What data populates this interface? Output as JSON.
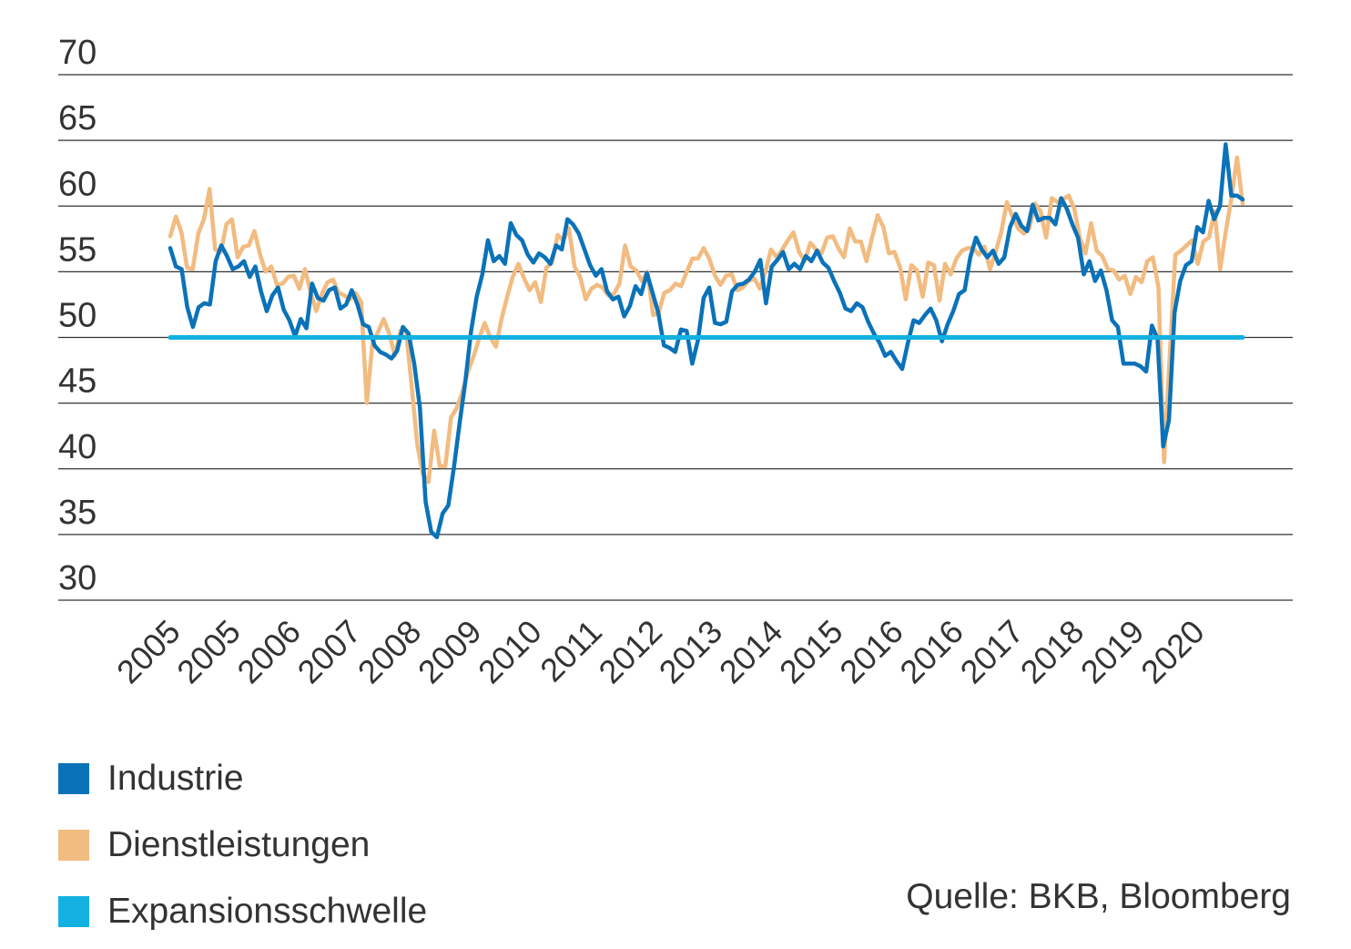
{
  "chart_data": {
    "type": "line",
    "title": "",
    "xlabel": "",
    "ylabel": "",
    "ylim": [
      30,
      70
    ],
    "yticks": [
      30,
      35,
      40,
      45,
      50,
      55,
      60,
      65,
      70
    ],
    "x_tick_labels": [
      "2005",
      "2005",
      "2006",
      "2007",
      "2008",
      "2009",
      "2010",
      "2011",
      "2012",
      "2013",
      "2014",
      "2015",
      "2016",
      "2016",
      "2017",
      "2018",
      "2019",
      "2020"
    ],
    "grid": "horizontal",
    "legend_position": "bottom-left",
    "colors": {
      "industrie": "#0a72b9",
      "dienstleistungen": "#f2bb80",
      "schwelle": "#12b1e2",
      "grid": "#333333"
    },
    "series": [
      {
        "name": "Industrie",
        "color": "#0a72b9",
        "values": [
          56.8,
          55.4,
          55.2,
          52.3,
          50.8,
          52.3,
          52.6,
          52.5,
          55.8,
          57.0,
          56.2,
          55.2,
          55.4,
          55.8,
          54.6,
          55.4,
          53.5,
          52.0,
          53.2,
          53.8,
          52.1,
          51.3,
          50.1,
          51.4,
          50.7,
          54.1,
          53.0,
          52.8,
          53.6,
          53.8,
          52.2,
          52.5,
          53.6,
          52.5,
          51.0,
          50.8,
          49.4,
          48.9,
          48.7,
          48.4,
          49.0,
          50.8,
          50.3,
          48.0,
          44.7,
          37.5,
          35.2,
          34.8,
          36.6,
          37.2,
          40.1,
          43.5,
          46.6,
          50.4,
          53.1,
          54.8,
          57.4,
          55.8,
          56.2,
          55.6,
          58.7,
          57.8,
          57.4,
          56.3,
          55.7,
          56.4,
          56.1,
          55.6,
          57.0,
          56.7,
          59.0,
          58.6,
          57.9,
          56.7,
          55.5,
          54.7,
          55.2,
          53.5,
          52.9,
          53.1,
          51.6,
          52.4,
          53.9,
          53.3,
          54.9,
          53.4,
          51.9,
          49.4,
          49.2,
          48.9,
          50.6,
          50.5,
          48.0,
          49.8,
          53.0,
          53.8,
          51.1,
          51.0,
          51.2,
          53.5,
          54.0,
          54.1,
          54.4,
          55.0,
          55.9,
          52.6,
          55.4,
          55.9,
          56.5,
          55.2,
          55.6,
          55.2,
          56.2,
          55.8,
          56.6,
          55.7,
          55.3,
          54.3,
          53.4,
          52.2,
          52.0,
          52.6,
          52.3,
          51.2,
          50.3,
          49.6,
          48.6,
          48.9,
          48.2,
          47.6,
          49.6,
          51.3,
          51.1,
          51.7,
          52.2,
          51.3,
          49.7,
          51.0,
          52.0,
          53.3,
          53.6,
          56.1,
          57.6,
          56.7,
          56.1,
          56.6,
          55.6,
          56.1,
          58.4,
          59.4,
          58.5,
          58.1,
          60.1,
          58.9,
          59.1,
          59.1,
          58.6,
          60.6,
          59.8,
          58.6,
          57.6,
          54.8,
          55.8,
          54.3,
          55.1,
          53.6,
          51.3,
          50.8,
          48.0,
          48.0,
          48.0,
          47.8,
          47.4,
          50.9,
          49.9,
          41.7,
          43.7,
          51.9,
          54.3,
          55.5,
          55.8,
          58.4,
          58.0,
          60.4,
          59.0,
          60.0,
          64.7,
          60.8,
          60.8,
          60.5
        ]
      },
      {
        "name": "Dienstleistungen",
        "color": "#f2bb80",
        "values": [
          57.7,
          59.2,
          58.0,
          55.3,
          55.2,
          57.9,
          59.0,
          61.3,
          56.7,
          56.5,
          58.6,
          59.0,
          56.1,
          56.9,
          57.0,
          58.1,
          56.3,
          55.0,
          55.4,
          54.0,
          54.1,
          54.6,
          54.7,
          53.7,
          55.2,
          53.4,
          52.0,
          53.3,
          54.2,
          54.4,
          53.4,
          53.2,
          52.9,
          53.4,
          52.7,
          45.0,
          49.5,
          50.4,
          51.4,
          50.3,
          48.6,
          50.5,
          50.5,
          46.3,
          41.8,
          39.6,
          39.0,
          42.9,
          40.2,
          40.2,
          43.9,
          44.6,
          45.8,
          47.4,
          48.5,
          49.9,
          51.1,
          50.0,
          49.3,
          51.4,
          53.1,
          54.6,
          55.6,
          54.5,
          53.6,
          54.2,
          52.7,
          55.3,
          55.7,
          57.8,
          57.4,
          58.3,
          55.4,
          54.6,
          52.9,
          53.7,
          54.0,
          53.8,
          53.2,
          53.3,
          54.1,
          57.0,
          55.4,
          55.1,
          54.3,
          55.0,
          51.7,
          51.9,
          53.4,
          53.6,
          54.1,
          53.9,
          55.0,
          56.0,
          56.0,
          56.8,
          56.0,
          54.7,
          54.0,
          54.7,
          54.8,
          53.6,
          53.8,
          54.3,
          54.5,
          53.7,
          55.0,
          56.7,
          56.1,
          56.7,
          57.4,
          58.0,
          56.5,
          55.8,
          57.2,
          56.7,
          56.4,
          57.6,
          57.7,
          56.8,
          56.1,
          58.3,
          57.3,
          57.3,
          55.8,
          57.6,
          59.3,
          58.4,
          56.4,
          56.5,
          55.3,
          52.9,
          55.5,
          55.1,
          53.1,
          55.7,
          55.5,
          52.8,
          55.6,
          54.8,
          56.0,
          56.6,
          56.8,
          56.8,
          56.3,
          56.9,
          55.2,
          56.5,
          58.0,
          60.3,
          59.2,
          58.3,
          57.9,
          58.3,
          60.2,
          59.6,
          57.6,
          60.6,
          60.3,
          60.5,
          60.8,
          59.8,
          57.6,
          56.4,
          58.7,
          56.6,
          56.2,
          55.2,
          55.1,
          54.4,
          54.7,
          53.3,
          54.6,
          54.2,
          55.8,
          56.1,
          53.8,
          40.5,
          48.5,
          56.3,
          56.6,
          57.0,
          57.4,
          55.6,
          57.3,
          57.6,
          59.6,
          55.2,
          58.1,
          60.6,
          63.7,
          60.2
        ]
      },
      {
        "name": "Expansionsschwelle",
        "color": "#12b1e2",
        "values": [
          50,
          50
        ]
      }
    ]
  },
  "legend": {
    "items": [
      {
        "label": "Industrie",
        "color": "#0a72b9"
      },
      {
        "label": "Dienstleistungen",
        "color": "#f2bb80"
      },
      {
        "label": "Expansionsschwelle",
        "color": "#12b1e2"
      }
    ]
  },
  "source": "Quelle: BKB, Bloomberg"
}
